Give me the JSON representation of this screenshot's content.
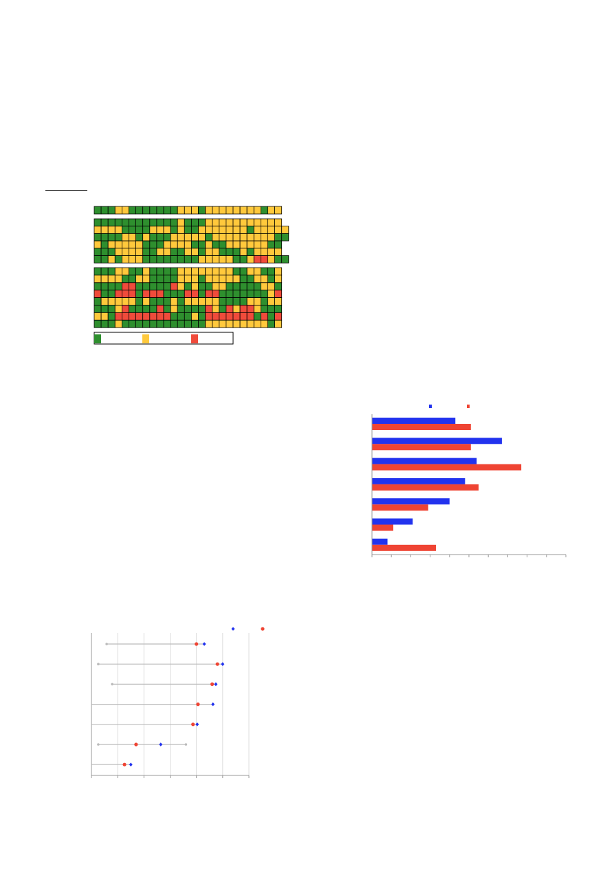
{
  "heatmap": {
    "colors": [
      "#2e8f2e",
      "#ffc93c",
      "#f04b3b"
    ],
    "blocks": [
      [
        [
          0,
          0,
          0,
          1,
          1,
          0,
          0,
          0,
          0,
          0,
          0,
          0,
          1,
          1,
          1,
          0,
          1,
          1,
          1,
          1,
          1,
          1,
          1,
          1,
          0,
          1,
          1
        ]
      ],
      [
        [
          0,
          0,
          0,
          0,
          0,
          0,
          0,
          0,
          0,
          0,
          0,
          0,
          1,
          0,
          0,
          0,
          1,
          1,
          1,
          1,
          1,
          1,
          1,
          1,
          1,
          1,
          1
        ],
        [
          1,
          1,
          1,
          1,
          0,
          0,
          0,
          0,
          1,
          1,
          1,
          0,
          1,
          0,
          0,
          1,
          1,
          1,
          1,
          1,
          1,
          1,
          0,
          1,
          1,
          1,
          1,
          1
        ],
        [
          0,
          0,
          0,
          0,
          1,
          1,
          0,
          1,
          0,
          0,
          0,
          1,
          1,
          1,
          1,
          1,
          0,
          1,
          1,
          1,
          1,
          1,
          1,
          1,
          1,
          1,
          0,
          0
        ],
        [
          1,
          0,
          1,
          1,
          1,
          1,
          1,
          0,
          0,
          0,
          1,
          1,
          1,
          1,
          0,
          0,
          1,
          0,
          0,
          1,
          1,
          1,
          1,
          1,
          1,
          0,
          0
        ],
        [
          0,
          0,
          0,
          1,
          1,
          1,
          1,
          0,
          0,
          1,
          1,
          0,
          0,
          1,
          1,
          0,
          1,
          1,
          0,
          0,
          0,
          1,
          0,
          1,
          1,
          1,
          1
        ],
        [
          0,
          0,
          1,
          0,
          1,
          1,
          1,
          0,
          0,
          0,
          0,
          0,
          0,
          0,
          0,
          1,
          1,
          1,
          1,
          1,
          0,
          0,
          1,
          2,
          2,
          1,
          0,
          0
        ]
      ],
      [
        [
          0,
          0,
          0,
          1,
          1,
          0,
          0,
          1,
          0,
          0,
          0,
          0,
          1,
          1,
          1,
          1,
          1,
          1,
          1,
          1,
          0,
          0,
          1,
          1,
          0,
          0,
          1
        ],
        [
          1,
          1,
          1,
          1,
          0,
          0,
          1,
          1,
          0,
          0,
          0,
          0,
          1,
          1,
          1,
          0,
          1,
          1,
          1,
          1,
          1,
          0,
          0,
          1,
          1,
          0,
          1
        ],
        [
          0,
          0,
          0,
          0,
          2,
          2,
          0,
          0,
          0,
          0,
          0,
          2,
          1,
          0,
          1,
          0,
          0,
          1,
          1,
          0,
          0,
          0,
          0,
          0,
          1,
          1,
          0
        ],
        [
          2,
          0,
          0,
          2,
          2,
          2,
          0,
          2,
          2,
          2,
          0,
          0,
          0,
          2,
          2,
          0,
          2,
          2,
          0,
          0,
          0,
          0,
          0,
          0,
          0,
          1,
          2
        ],
        [
          0,
          1,
          1,
          1,
          1,
          1,
          0,
          1,
          0,
          0,
          0,
          1,
          0,
          1,
          1,
          1,
          1,
          1,
          0,
          0,
          0,
          0,
          1,
          1,
          0,
          1,
          1
        ],
        [
          0,
          0,
          0,
          1,
          2,
          0,
          0,
          0,
          0,
          2,
          0,
          1,
          0,
          0,
          0,
          0,
          2,
          1,
          0,
          2,
          1,
          2,
          2,
          1,
          0,
          0,
          0
        ],
        [
          1,
          1,
          0,
          2,
          2,
          2,
          2,
          2,
          2,
          2,
          2,
          0,
          0,
          0,
          1,
          0,
          2,
          2,
          2,
          2,
          2,
          2,
          2,
          0,
          2,
          0,
          2
        ],
        [
          0,
          0,
          0,
          1,
          0,
          0,
          0,
          0,
          0,
          0,
          0,
          0,
          0,
          0,
          0,
          0,
          1,
          1,
          1,
          1,
          1,
          1,
          1,
          1,
          1,
          0,
          1
        ]
      ]
    ]
  },
  "chart_data": [
    {
      "type": "hbar",
      "xlim": [
        0,
        100
      ],
      "xticks": [
        0,
        10,
        20,
        30,
        40,
        50,
        60,
        70,
        80,
        90,
        100
      ],
      "series": [
        {
          "color": "#2233ee",
          "values": [
            43,
            67,
            54,
            48,
            40,
            21,
            8
          ]
        },
        {
          "color": "#ef4433",
          "values": [
            51,
            51,
            77,
            55,
            29,
            11,
            33
          ]
        }
      ]
    },
    {
      "type": "dotrange",
      "xlim": [
        0,
        60
      ],
      "xticks": [
        0,
        10,
        20,
        30,
        40,
        50,
        60
      ],
      "grid": true,
      "range": {
        "color": "#bbbbbb",
        "low": [
          5.8,
          2.6,
          7.9,
          0,
          0,
          2.6,
          0
        ],
        "high": [
          null,
          null,
          null,
          null,
          null,
          36,
          null
        ]
      },
      "series": [
        {
          "color": "#2233ee",
          "marker": "diamond",
          "values": [
            43,
            50,
            47.4,
            46.3,
            40.3,
            26.4,
            15
          ]
        },
        {
          "color": "#ef4433",
          "marker": "circle",
          "values": [
            40,
            48,
            46,
            40.6,
            38.7,
            17,
            12.6
          ]
        }
      ]
    }
  ]
}
